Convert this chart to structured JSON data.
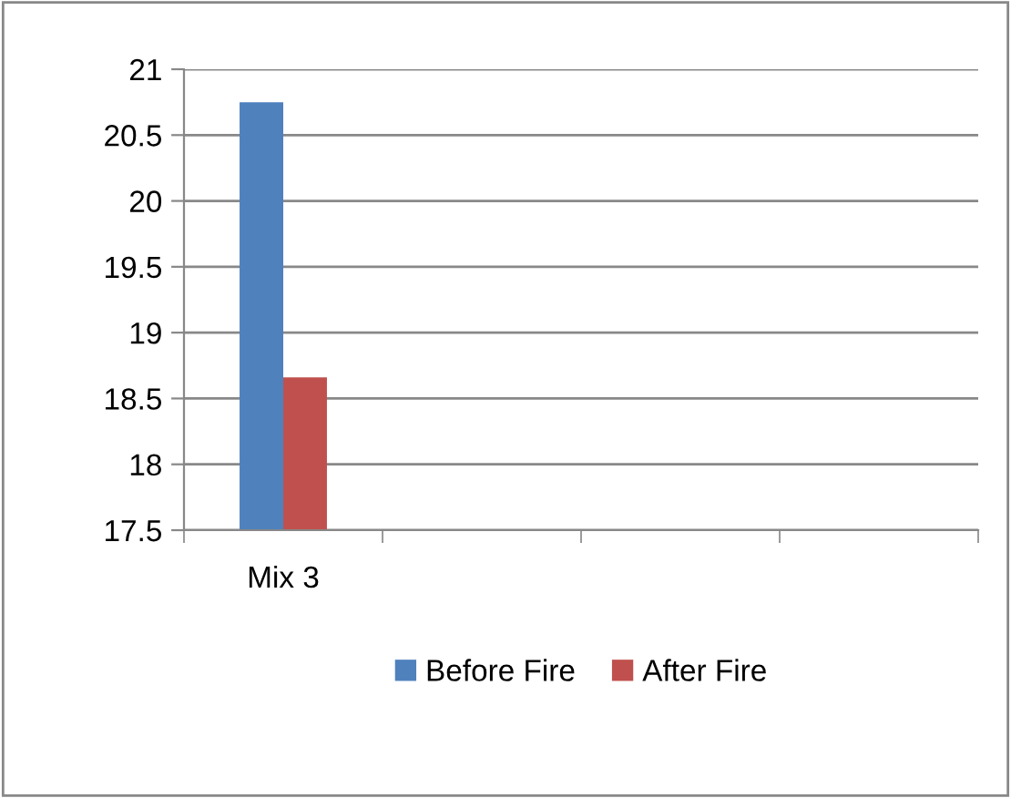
{
  "chart_data": {
    "type": "bar",
    "categories": [
      "Mix 3",
      null,
      null,
      null
    ],
    "series": [
      {
        "name": "Before Fire",
        "color": "#4f81bd",
        "values": [
          20.75,
          null,
          null,
          null
        ]
      },
      {
        "name": "After Fire",
        "color": "#c0504d",
        "values": [
          18.66,
          null,
          null,
          null
        ]
      }
    ],
    "ylim": [
      17.5,
      21
    ],
    "yticks": [
      17.5,
      18,
      18.5,
      19,
      19.5,
      20,
      20.5,
      21
    ],
    "grid": "y",
    "legend": "bottom"
  }
}
